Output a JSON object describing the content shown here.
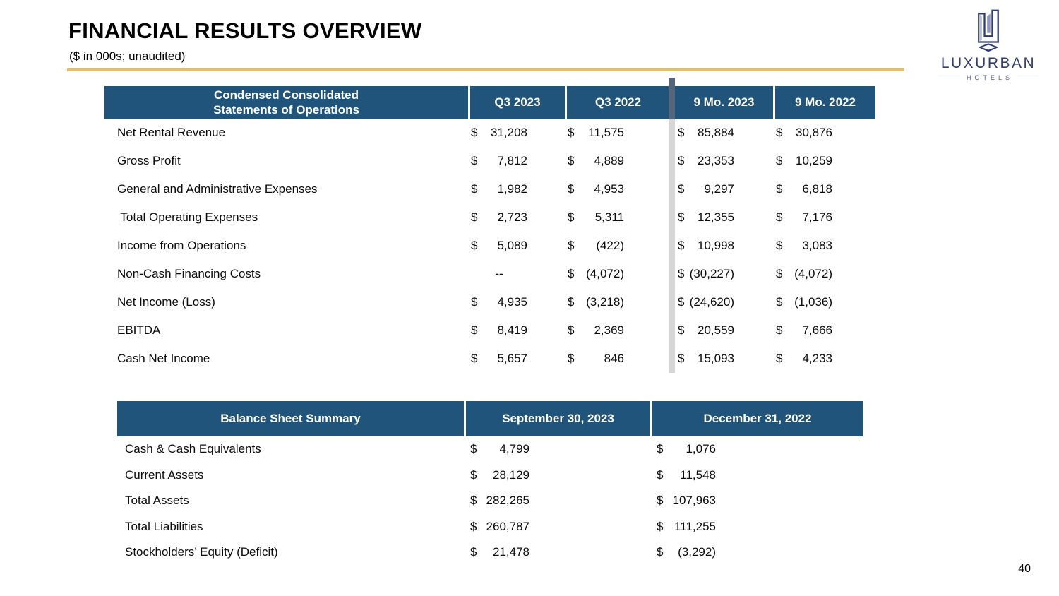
{
  "slide": {
    "title": "FINANCIAL RESULTS OVERVIEW",
    "subtitle": "($ in 000s; unaudited)",
    "page_number": "40"
  },
  "logo": {
    "brand": "LUXURBAN",
    "sub": "HOTELS"
  },
  "colors": {
    "header_blue": "#20547A",
    "gold": "#E3BF68",
    "divider_gray": "#D6D6D6",
    "logo_navy": "#2F3C6E"
  },
  "operations_table": {
    "title": "Condensed Consolidated\nStatements of Operations",
    "col_headers": [
      "Q3 2023",
      "Q3 2022",
      "9 Mo. 2023",
      "9 Mo. 2022"
    ],
    "rows": [
      {
        "label": "Net Rental Revenue",
        "values": [
          "$ 31,208",
          "$ 11,575",
          "$ 85,884",
          "$ 30,876"
        ]
      },
      {
        "label": "Gross Profit",
        "values": [
          "$ 7,812",
          "$ 4,889",
          "$ 23,353",
          "$ 10,259"
        ]
      },
      {
        "label": "General and Administrative Expenses",
        "values": [
          "$ 1,982",
          "$ 4,953",
          "$ 9,297",
          "$ 6,818"
        ]
      },
      {
        "label": " Total Operating Expenses",
        "values": [
          "$ 2,723",
          "$ 5,311",
          "$ 12,355",
          "$ 7,176"
        ]
      },
      {
        "label": "Income from Operations",
        "values": [
          "$ 5,089",
          "$ (422)",
          "$ 10,998",
          "$ 3,083"
        ]
      },
      {
        "label": "Non-Cash Financing Costs",
        "values": [
          "--",
          "$ (4,072)",
          "$ (30,227)",
          "$ (4,072)"
        ]
      },
      {
        "label": "Net Income (Loss)",
        "values": [
          "$ 4,935",
          "$ (3,218)",
          "$ (24,620)",
          "$ (1,036)"
        ]
      },
      {
        "label": "EBITDA",
        "values": [
          "$ 8,419",
          "$ 2,369",
          "$ 20,559",
          "$ 7,666"
        ]
      },
      {
        "label": "Cash Net Income",
        "values": [
          "$ 5,657",
          "$ 846",
          "$ 15,093",
          "$ 4,233"
        ]
      }
    ]
  },
  "balance_table": {
    "title": "Balance Sheet Summary",
    "col_headers": [
      "September 30, 2023",
      "December 31, 2022"
    ],
    "rows": [
      {
        "label": "Cash & Cash Equivalents",
        "values": [
          "$ 4,799",
          "$ 1,076"
        ]
      },
      {
        "label": "Current Assets",
        "values": [
          "$ 28,129",
          "$ 11,548"
        ]
      },
      {
        "label": "Total Assets",
        "values": [
          "$ 282,265",
          "$ 107,963"
        ]
      },
      {
        "label": "Total Liabilities",
        "values": [
          "$ 260,787",
          "$ 111,255"
        ]
      },
      {
        "label": "Stockholders’ Equity (Deficit)",
        "values": [
          "$ 21,478",
          "$ (3,292)"
        ]
      }
    ]
  }
}
